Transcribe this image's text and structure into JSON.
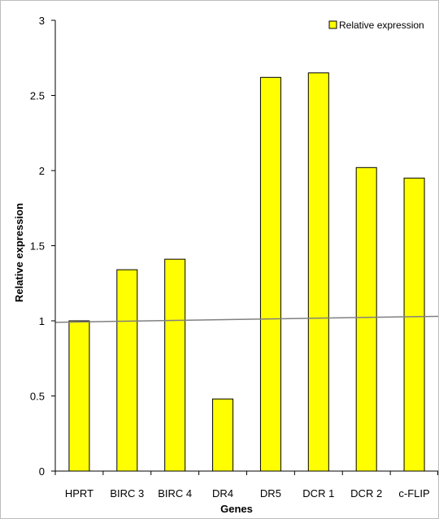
{
  "chart_data": {
    "type": "bar",
    "categories": [
      "HPRT",
      "BIRC 3",
      "BIRC 4",
      "DR4",
      "DR5",
      "DCR 1",
      "DCR 2",
      "c-FLIP"
    ],
    "series": [
      {
        "name": "Relative expression",
        "values": [
          1.0,
          1.34,
          1.41,
          0.48,
          2.62,
          2.65,
          2.02,
          1.95
        ]
      }
    ],
    "xlabel": "Genes",
    "ylabel": "Relative expression",
    "ylim": [
      0,
      3
    ],
    "yticks": [
      "0",
      "0.5",
      "1",
      "1.5",
      "2",
      "2.5",
      "3"
    ],
    "ytick_values": [
      0,
      0.5,
      1,
      1.5,
      2,
      2.5,
      3
    ],
    "trendline": {
      "type": "linear",
      "start_value": 0.99,
      "end_value": 1.03
    },
    "legend_position": "top-right",
    "grid": false,
    "colors": {
      "bar_fill": "#ffff00",
      "bar_stroke": "#000000",
      "trendline": "#808080",
      "axis": "#000000"
    }
  }
}
